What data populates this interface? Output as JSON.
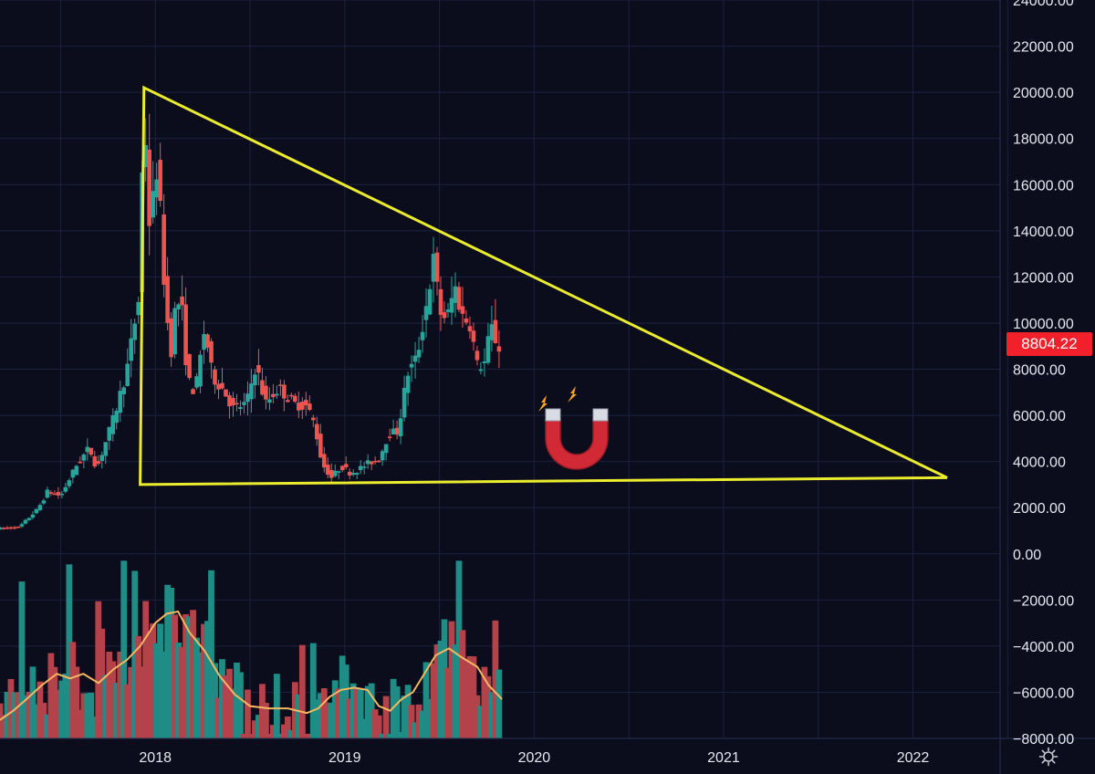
{
  "colors": {
    "background": "#0b0d1d",
    "grid": "#1d2140",
    "up": "#26a69a",
    "down": "#ef5350",
    "volume_up": "#1f8c85",
    "volume_down": "#b4424a",
    "ma_line": "#f5b860",
    "triangle": "#ecec2e",
    "price_badge": "#f2202a",
    "text": "#e6e8f0"
  },
  "current_price_label": "8804.22",
  "settings_icon": "gear-icon",
  "chart_data": {
    "type": "candlestick",
    "y_axis": {
      "ylim": [
        -8000,
        24000
      ],
      "tick_values": [
        24000,
        22000,
        20000,
        18000,
        16000,
        14000,
        12000,
        10000,
        8000,
        6000,
        4000,
        2000,
        0,
        -2000,
        -4000,
        -6000,
        -8000
      ],
      "tick_labels": [
        "24000.00",
        "22000.00",
        "20000.00",
        "18000.00",
        "16000.00",
        "14000.00",
        "12000.00",
        "10000.00",
        "8000.00",
        "6000.00",
        "4000.00",
        "2000.00",
        "0.00",
        "−2000.00",
        "−4000.00",
        "−6000.00",
        "−8000.00"
      ]
    },
    "x_axis": {
      "xlim": [
        2017.18,
        2022.46
      ],
      "tick_values": [
        2018,
        2019,
        2020,
        2021,
        2022
      ],
      "tick_labels": [
        "2018",
        "2019",
        "2020",
        "2021",
        "2022"
      ]
    },
    "grid": true,
    "price_path": [
      [
        2017.18,
        1100
      ],
      [
        2017.3,
        1150
      ],
      [
        2017.4,
        1950
      ],
      [
        2017.45,
        2700
      ],
      [
        2017.52,
        2500
      ],
      [
        2017.6,
        3800
      ],
      [
        2017.67,
        4600
      ],
      [
        2017.71,
        3700
      ],
      [
        2017.8,
        5900
      ],
      [
        2017.87,
        8000
      ],
      [
        2017.93,
        11000
      ],
      [
        2017.96,
        19500
      ],
      [
        2017.99,
        14000
      ],
      [
        2018.03,
        17000
      ],
      [
        2018.07,
        11200
      ],
      [
        2018.1,
        8600
      ],
      [
        2018.13,
        11100
      ],
      [
        2018.16,
        10500
      ],
      [
        2018.19,
        7500
      ],
      [
        2018.23,
        7000
      ],
      [
        2018.28,
        9800
      ],
      [
        2018.32,
        7700
      ],
      [
        2018.38,
        7100
      ],
      [
        2018.43,
        6300
      ],
      [
        2018.5,
        6500
      ],
      [
        2018.55,
        8200
      ],
      [
        2018.6,
        6500
      ],
      [
        2018.67,
        7200
      ],
      [
        2018.75,
        6500
      ],
      [
        2018.82,
        6400
      ],
      [
        2018.86,
        5600
      ],
      [
        2018.9,
        3900
      ],
      [
        2018.95,
        3300
      ],
      [
        2019.0,
        3800
      ],
      [
        2019.05,
        3500
      ],
      [
        2019.1,
        3700
      ],
      [
        2019.15,
        3950
      ],
      [
        2019.2,
        4100
      ],
      [
        2019.25,
        5200
      ],
      [
        2019.3,
        5300
      ],
      [
        2019.35,
        7800
      ],
      [
        2019.4,
        8500
      ],
      [
        2019.45,
        10800
      ],
      [
        2019.49,
        12800
      ],
      [
        2019.52,
        10500
      ],
      [
        2019.56,
        10200
      ],
      [
        2019.6,
        11600
      ],
      [
        2019.64,
        10300
      ],
      [
        2019.68,
        10000
      ],
      [
        2019.72,
        8100
      ],
      [
        2019.76,
        8300
      ],
      [
        2019.79,
        9900
      ],
      [
        2019.83,
        8900
      ]
    ],
    "volume_ma_path": [
      [
        2017.18,
        -7200
      ],
      [
        2017.25,
        -6800
      ],
      [
        2017.32,
        -6300
      ],
      [
        2017.4,
        -5700
      ],
      [
        2017.48,
        -5200
      ],
      [
        2017.55,
        -5400
      ],
      [
        2017.62,
        -5200
      ],
      [
        2017.7,
        -5600
      ],
      [
        2017.78,
        -5000
      ],
      [
        2017.85,
        -4600
      ],
      [
        2017.92,
        -4000
      ],
      [
        2018.0,
        -3000
      ],
      [
        2018.06,
        -2600
      ],
      [
        2018.12,
        -2500
      ],
      [
        2018.18,
        -3400
      ],
      [
        2018.26,
        -4200
      ],
      [
        2018.34,
        -5300
      ],
      [
        2018.42,
        -6100
      ],
      [
        2018.5,
        -6600
      ],
      [
        2018.6,
        -6700
      ],
      [
        2018.7,
        -6700
      ],
      [
        2018.8,
        -6900
      ],
      [
        2018.86,
        -6700
      ],
      [
        2018.92,
        -6200
      ],
      [
        2018.98,
        -5900
      ],
      [
        2019.05,
        -5800
      ],
      [
        2019.12,
        -5900
      ],
      [
        2019.18,
        -6600
      ],
      [
        2019.24,
        -6800
      ],
      [
        2019.3,
        -6300
      ],
      [
        2019.36,
        -6000
      ],
      [
        2019.42,
        -5200
      ],
      [
        2019.48,
        -4400
      ],
      [
        2019.55,
        -4100
      ],
      [
        2019.62,
        -4500
      ],
      [
        2019.7,
        -4900
      ],
      [
        2019.76,
        -5700
      ],
      [
        2019.83,
        -6300
      ]
    ],
    "triangle_pattern": [
      [
        2017.94,
        20200
      ],
      [
        2022.18,
        3300
      ],
      [
        2017.92,
        3000
      ]
    ],
    "current_price": 8804.22
  }
}
